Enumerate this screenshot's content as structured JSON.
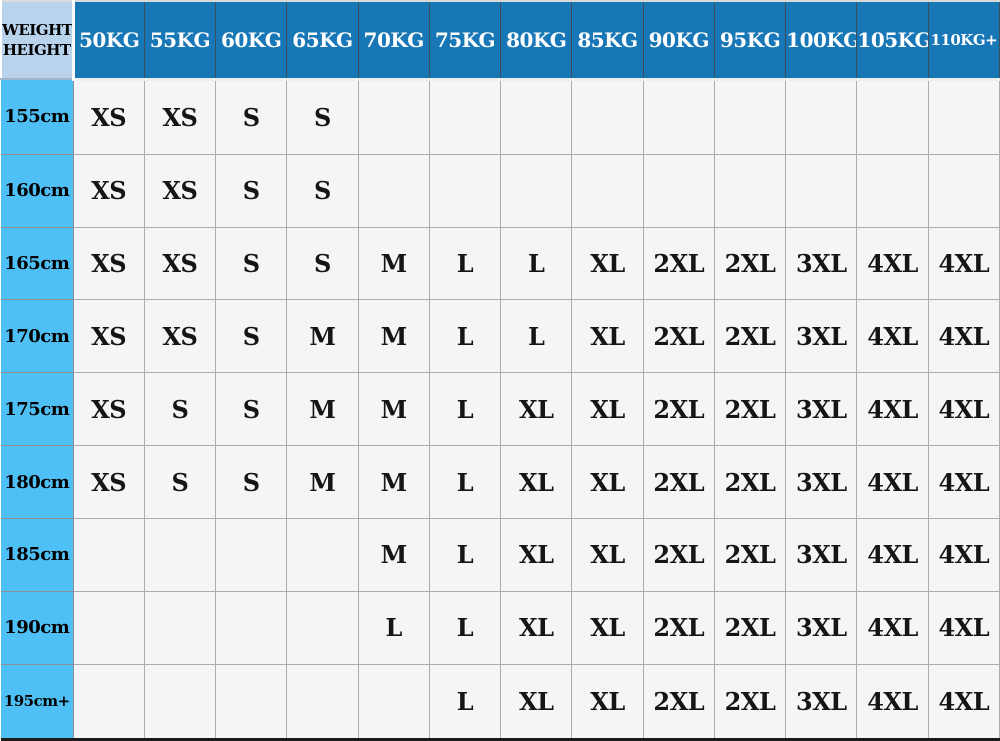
{
  "chart_data": {
    "type": "table",
    "corner": {
      "line1": "WEIGHT",
      "line2": "HEIGHT"
    },
    "columns": [
      {
        "label": "50KG"
      },
      {
        "label": "55KG"
      },
      {
        "label": "60KG"
      },
      {
        "label": "65KG"
      },
      {
        "label": "70KG"
      },
      {
        "label": "75KG"
      },
      {
        "label": "80KG"
      },
      {
        "label": "85KG"
      },
      {
        "label": "90KG"
      },
      {
        "label": "95KG"
      },
      {
        "label": "100KG"
      },
      {
        "label": "105KG"
      },
      {
        "label": "110KG+",
        "small": true
      }
    ],
    "rows": [
      {
        "height": "155cm",
        "sizes": [
          "XS",
          "XS",
          "S",
          "S",
          "",
          "",
          "",
          "",
          "",
          "",
          "",
          "",
          ""
        ]
      },
      {
        "height": "160cm",
        "sizes": [
          "XS",
          "XS",
          "S",
          "S",
          "",
          "",
          "",
          "",
          "",
          "",
          "",
          "",
          ""
        ]
      },
      {
        "height": "165cm",
        "sizes": [
          "XS",
          "XS",
          "S",
          "S",
          "M",
          "L",
          "L",
          "XL",
          "2XL",
          "2XL",
          "3XL",
          "4XL",
          "4XL"
        ]
      },
      {
        "height": "170cm",
        "sizes": [
          "XS",
          "XS",
          "S",
          "M",
          "M",
          "L",
          "L",
          "XL",
          "2XL",
          "2XL",
          "3XL",
          "4XL",
          "4XL"
        ]
      },
      {
        "height": "175cm",
        "sizes": [
          "XS",
          "S",
          "S",
          "M",
          "M",
          "L",
          "XL",
          "XL",
          "2XL",
          "2XL",
          "3XL",
          "4XL",
          "4XL"
        ]
      },
      {
        "height": "180cm",
        "sizes": [
          "XS",
          "S",
          "S",
          "M",
          "M",
          "L",
          "XL",
          "XL",
          "2XL",
          "2XL",
          "3XL",
          "4XL",
          "4XL"
        ]
      },
      {
        "height": "185cm",
        "sizes": [
          "",
          "",
          "",
          "",
          "M",
          "L",
          "XL",
          "XL",
          "2XL",
          "2XL",
          "3XL",
          "4XL",
          "4XL"
        ]
      },
      {
        "height": "190cm",
        "sizes": [
          "",
          "",
          "",
          "",
          "L",
          "L",
          "XL",
          "XL",
          "2XL",
          "2XL",
          "3XL",
          "4XL",
          "4XL"
        ]
      },
      {
        "height": "195cm+",
        "small": true,
        "sizes": [
          "",
          "",
          "",
          "",
          "",
          "L",
          "XL",
          "XL",
          "2XL",
          "2XL",
          "3XL",
          "4XL",
          "4XL"
        ]
      }
    ]
  },
  "colors": {
    "header_blue": "#1877B6",
    "height_cyan": "#4FC0F6",
    "corner_blue": "#B9D3EC",
    "cell_bg": "#F5F4F6",
    "grid_gray": "#ABABAB"
  }
}
